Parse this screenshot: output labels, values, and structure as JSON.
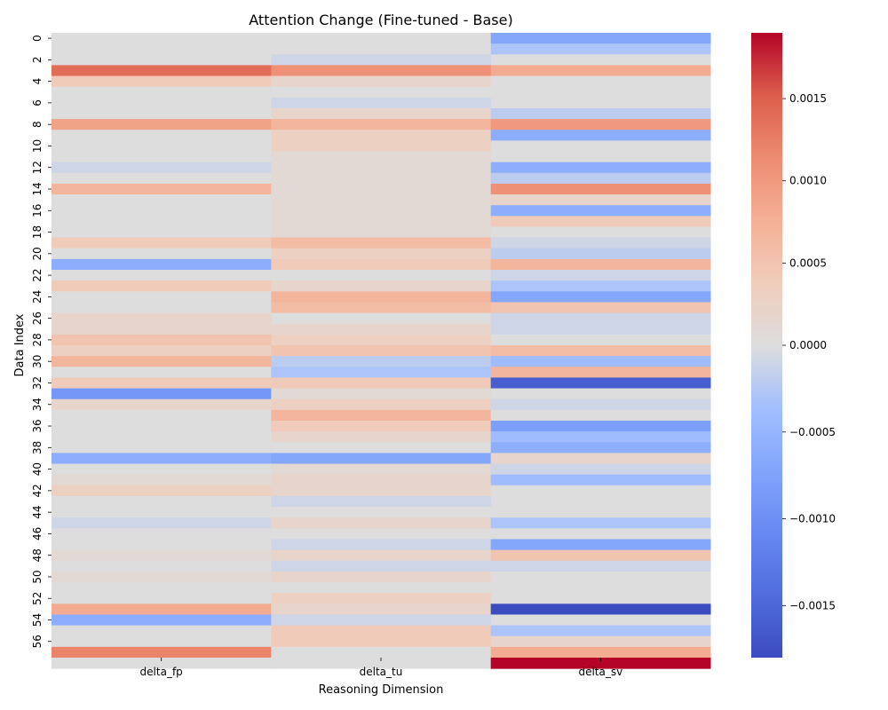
{
  "chart_data": {
    "type": "heatmap",
    "title": "Attention Change (Fine-tuned - Base)",
    "xlabel": "Reasoning Dimension",
    "ylabel": "Data Index",
    "columns": [
      "delta_fp",
      "delta_tu",
      "delta_sv"
    ],
    "row_labels": [
      "0",
      "2",
      "4",
      "6",
      "8",
      "10",
      "12",
      "14",
      "16",
      "18",
      "20",
      "22",
      "24",
      "26",
      "28",
      "30",
      "32",
      "34",
      "36",
      "38",
      "40",
      "42",
      "44",
      "46",
      "48",
      "50",
      "52",
      "54",
      "56"
    ],
    "row_count": 58,
    "colormap": "coolwarm",
    "color_range": [
      -0.0018,
      0.0019
    ],
    "colorbar_ticks": [
      "0.0015",
      "0.0010",
      "0.0005",
      "0.0000",
      "−0.0005",
      "−0.0010",
      "−0.0015"
    ],
    "values": [
      [
        0.0,
        0.0,
        -0.0007
      ],
      [
        0.0,
        0.0,
        -0.0003
      ],
      [
        0.0,
        -0.0001,
        0.0
      ],
      [
        0.0014,
        0.0011,
        0.0008
      ],
      [
        0.0004,
        0.0002,
        0.0
      ],
      [
        0.0,
        0.0,
        0.0
      ],
      [
        0.0,
        -0.0001,
        0.0
      ],
      [
        0.0,
        0.0002,
        -0.0002
      ],
      [
        0.0009,
        0.0007,
        0.001
      ],
      [
        0.0,
        0.0003,
        -0.0006
      ],
      [
        0.0,
        0.0003,
        0.0
      ],
      [
        0.0,
        0.0001,
        0.0
      ],
      [
        -0.0001,
        0.0001,
        -0.0006
      ],
      [
        0.0,
        0.0001,
        -0.0002
      ],
      [
        0.0007,
        0.0001,
        0.0011
      ],
      [
        0.0,
        0.0001,
        0.0002
      ],
      [
        0.0,
        0.0001,
        -0.0006
      ],
      [
        0.0,
        0.0001,
        0.0004
      ],
      [
        0.0,
        0.0001,
        0.0
      ],
      [
        0.0004,
        0.0006,
        -0.0001
      ],
      [
        0.0,
        0.0003,
        -0.0002
      ],
      [
        -0.0006,
        0.0004,
        0.0007
      ],
      [
        0.0,
        0.0,
        -0.0001
      ],
      [
        0.0004,
        0.0002,
        -0.0003
      ],
      [
        0.0,
        0.0007,
        -0.0007
      ],
      [
        0.0,
        0.0006,
        0.0005
      ],
      [
        0.0002,
        0.0,
        -0.0001
      ],
      [
        0.0002,
        0.0002,
        -0.0001
      ],
      [
        0.0005,
        0.0003,
        0.0
      ],
      [
        0.0003,
        0.0005,
        0.0006
      ],
      [
        0.0007,
        -0.0002,
        -0.0004
      ],
      [
        0.0,
        -0.0003,
        0.0007
      ],
      [
        0.0004,
        0.0004,
        -0.0016
      ],
      [
        -0.0009,
        0.0001,
        0.0
      ],
      [
        0.0002,
        0.0003,
        -0.0001
      ],
      [
        0.0,
        0.0007,
        0.0
      ],
      [
        0.0,
        0.0004,
        -0.0008
      ],
      [
        0.0,
        0.0002,
        -0.0004
      ],
      [
        0.0,
        0.0,
        -0.0006
      ],
      [
        -0.0006,
        -0.0007,
        0.0002
      ],
      [
        0.0,
        0.0001,
        -0.0001
      ],
      [
        0.0001,
        0.0002,
        -0.0004
      ],
      [
        0.0003,
        0.0002,
        0.0
      ],
      [
        0.0,
        -0.0001,
        0.0
      ],
      [
        0.0,
        0.0,
        0.0
      ],
      [
        -0.0001,
        0.0002,
        -0.0003
      ],
      [
        0.0,
        0.0,
        0.0
      ],
      [
        0.0,
        -0.0001,
        -0.0007
      ],
      [
        0.0001,
        0.0002,
        0.0005
      ],
      [
        0.0,
        -0.0001,
        -0.0001
      ],
      [
        0.0001,
        0.0002,
        0.0
      ],
      [
        0.0,
        0.0,
        0.0
      ],
      [
        0.0,
        0.0003,
        0.0
      ],
      [
        0.0008,
        0.0002,
        -0.0018
      ],
      [
        -0.0006,
        -0.0001,
        0.0
      ],
      [
        0.0,
        0.0004,
        -0.0003
      ],
      [
        0.0,
        0.0004,
        0.0002
      ],
      [
        0.0012,
        0.0,
        0.0008
      ],
      [
        0.0,
        0.0,
        0.0019
      ]
    ]
  }
}
